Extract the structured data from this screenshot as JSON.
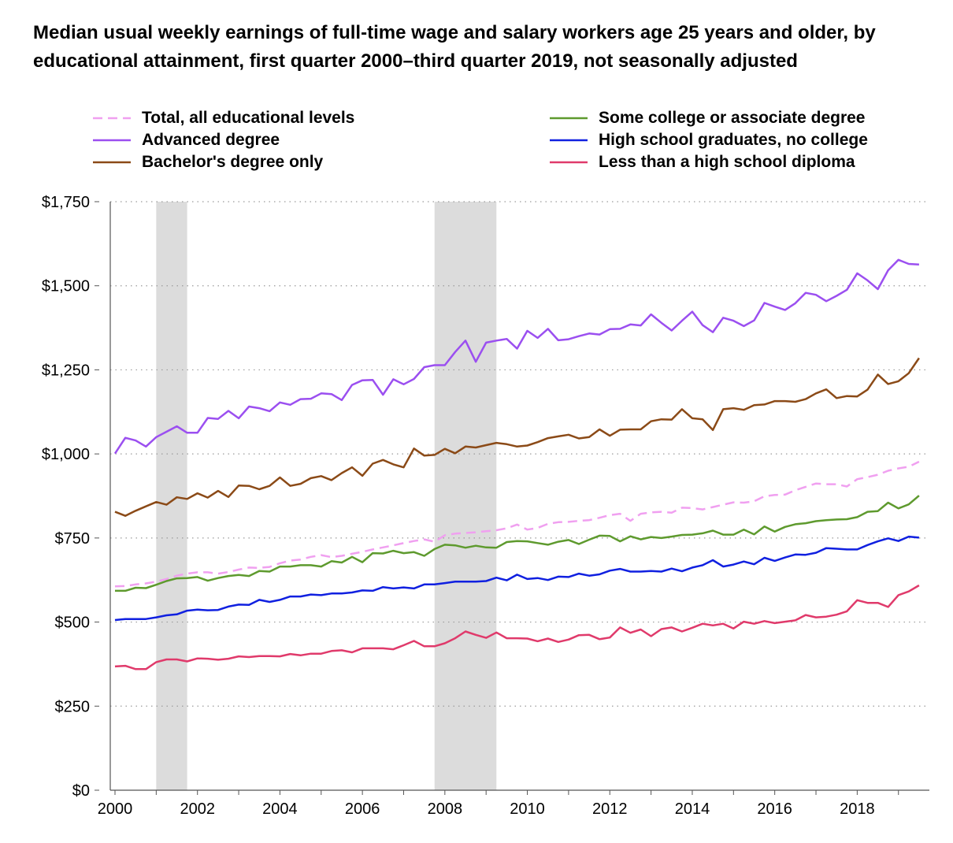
{
  "chart_data": {
    "type": "line",
    "title": "Median usual weekly earnings of full-time wage and salary workers age 25 years and older, by educational attainment, first quarter 2000–third quarter 2019, not seasonally adjusted",
    "xlabel": "",
    "ylabel": "",
    "ylim": [
      0,
      1750
    ],
    "xlim": [
      2000,
      2019.75
    ],
    "y_ticks": [
      0,
      250,
      500,
      750,
      1000,
      1250,
      1500,
      1750
    ],
    "y_tick_labels": [
      "$0",
      "$250",
      "$500",
      "$750",
      "$1,000",
      "$1,250",
      "$1,500",
      "$1,750"
    ],
    "x_ticks": [
      2000,
      2002,
      2004,
      2006,
      2008,
      2010,
      2012,
      2014,
      2016,
      2018
    ],
    "x_tick_labels": [
      "2000",
      "2002",
      "2004",
      "2006",
      "2008",
      "2010",
      "2012",
      "2014",
      "2016",
      "2018"
    ],
    "grid": "horizontal-dotted",
    "legend_position": "top",
    "recessions": [
      [
        2001.0,
        2001.75
      ],
      [
        2007.75,
        2009.25
      ]
    ],
    "x_start": 2000,
    "x_step": 0.25,
    "series": [
      {
        "name": "Total, all educational levels",
        "color": "#f0a0f0",
        "dashed": true,
        "values": [
          606,
          607,
          612,
          615,
          620,
          628,
          638,
          644,
          648,
          648,
          644,
          649,
          656,
          662,
          661,
          664,
          675,
          683,
          686,
          694,
          699,
          693,
          697,
          703,
          709,
          716,
          722,
          728,
          735,
          741,
          746,
          739,
          758,
          763,
          765,
          767,
          770,
          773,
          779,
          790,
          775,
          780,
          792,
          797,
          798,
          801,
          803,
          810,
          818,
          822,
          801,
          822,
          826,
          828,
          825,
          840,
          839,
          835,
          842,
          849,
          856,
          855,
          859,
          874,
          878,
          879,
          892,
          902,
          912,
          910,
          910,
          903,
          925,
          931,
          938,
          950,
          957,
          962,
          977
        ]
      },
      {
        "name": "Advanced degree",
        "color": "#9b4ff0",
        "dashed": false,
        "values": [
          1001,
          1048,
          1040,
          1022,
          1050,
          1066,
          1082,
          1063,
          1063,
          1107,
          1104,
          1128,
          1106,
          1141,
          1136,
          1127,
          1153,
          1146,
          1163,
          1164,
          1180,
          1178,
          1160,
          1205,
          1219,
          1220,
          1176,
          1222,
          1207,
          1223,
          1258,
          1264,
          1264,
          1303,
          1337,
          1274,
          1331,
          1337,
          1342,
          1313,
          1366,
          1345,
          1372,
          1338,
          1341,
          1350,
          1358,
          1355,
          1371,
          1372,
          1385,
          1382,
          1415,
          1390,
          1367,
          1396,
          1423,
          1383,
          1362,
          1405,
          1396,
          1380,
          1397,
          1449,
          1438,
          1428,
          1448,
          1479,
          1473,
          1454,
          1470,
          1488,
          1537,
          1516,
          1490,
          1546,
          1577,
          1565,
          1563
        ]
      },
      {
        "name": "Bachelor's degree only",
        "color": "#8b4a17",
        "dashed": false,
        "values": [
          828,
          816,
          831,
          844,
          857,
          849,
          871,
          866,
          883,
          870,
          890,
          872,
          906,
          905,
          895,
          905,
          930,
          905,
          911,
          928,
          934,
          922,
          943,
          960,
          935,
          971,
          982,
          969,
          960,
          1016,
          995,
          997,
          1015,
          1002,
          1022,
          1019,
          1026,
          1033,
          1029,
          1022,
          1025,
          1035,
          1047,
          1052,
          1057,
          1046,
          1050,
          1073,
          1054,
          1072,
          1073,
          1073,
          1097,
          1103,
          1102,
          1133,
          1106,
          1103,
          1071,
          1133,
          1136,
          1131,
          1145,
          1147,
          1157,
          1157,
          1155,
          1163,
          1180,
          1192,
          1166,
          1172,
          1171,
          1191,
          1236,
          1208,
          1216,
          1240,
          1285
        ]
      },
      {
        "name": "Some college or associate degree",
        "color": "#5e9a2e",
        "dashed": false,
        "values": [
          593,
          593,
          602,
          601,
          611,
          622,
          630,
          631,
          634,
          623,
          631,
          637,
          640,
          637,
          652,
          650,
          665,
          665,
          669,
          669,
          665,
          681,
          677,
          694,
          678,
          705,
          704,
          712,
          705,
          708,
          697,
          717,
          730,
          728,
          721,
          727,
          722,
          721,
          738,
          741,
          740,
          735,
          730,
          739,
          744,
          732,
          745,
          757,
          756,
          740,
          755,
          746,
          753,
          750,
          754,
          759,
          760,
          764,
          772,
          760,
          760,
          775,
          761,
          784,
          769,
          783,
          791,
          794,
          800,
          803,
          805,
          806,
          812,
          828,
          830,
          855,
          838,
          850,
          876
        ]
      },
      {
        "name": "High school graduates, no college",
        "color": "#1020e0",
        "dashed": false,
        "values": [
          506,
          509,
          509,
          509,
          514,
          520,
          523,
          534,
          537,
          535,
          536,
          546,
          552,
          551,
          566,
          560,
          566,
          576,
          576,
          582,
          580,
          585,
          585,
          588,
          594,
          593,
          604,
          600,
          603,
          600,
          612,
          612,
          616,
          620,
          620,
          620,
          622,
          632,
          624,
          641,
          628,
          631,
          625,
          635,
          634,
          644,
          638,
          642,
          653,
          658,
          650,
          650,
          652,
          650,
          659,
          651,
          662,
          669,
          684,
          665,
          671,
          680,
          672,
          691,
          682,
          692,
          701,
          700,
          706,
          720,
          718,
          716,
          716,
          729,
          740,
          749,
          741,
          754,
          751
        ]
      },
      {
        "name": "Less than a high school diploma",
        "color": "#e03a6b",
        "dashed": false,
        "values": [
          368,
          370,
          360,
          360,
          381,
          389,
          389,
          383,
          392,
          391,
          388,
          391,
          398,
          396,
          399,
          399,
          398,
          405,
          401,
          406,
          406,
          414,
          416,
          410,
          422,
          422,
          422,
          419,
          431,
          444,
          428,
          428,
          437,
          452,
          472,
          462,
          453,
          469,
          452,
          452,
          451,
          443,
          451,
          441,
          448,
          461,
          462,
          449,
          454,
          484,
          468,
          478,
          458,
          479,
          484,
          472,
          483,
          495,
          490,
          495,
          481,
          501,
          495,
          503,
          497,
          501,
          505,
          521,
          514,
          516,
          522,
          532,
          565,
          557,
          557,
          545,
          580,
          591,
          609
        ]
      }
    ]
  }
}
